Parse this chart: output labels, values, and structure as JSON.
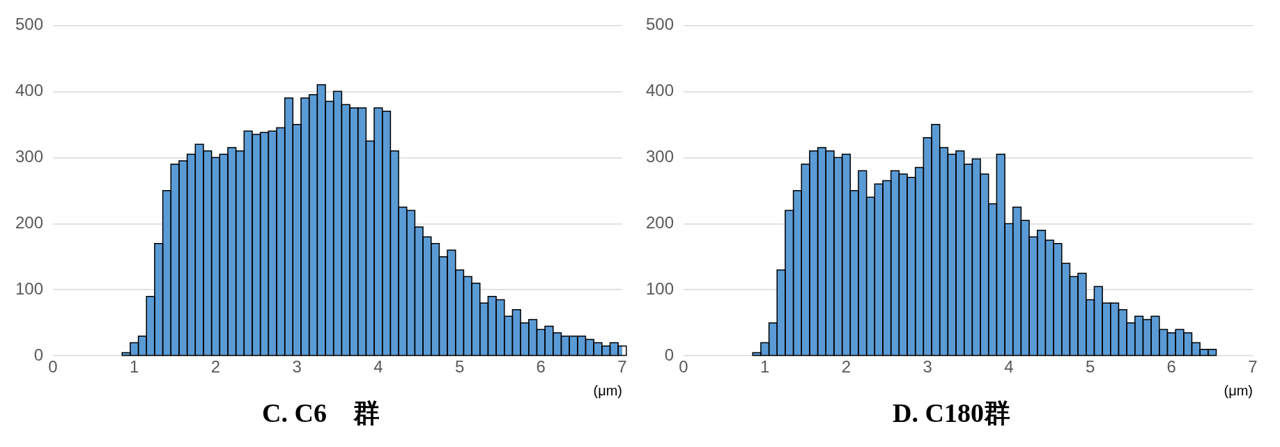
{
  "chart_data": [
    {
      "type": "histogram",
      "title": "C. C6　群",
      "xlabel": "(μm)",
      "color": "#5b9bd5",
      "bins": [
        0.85,
        0.95,
        1.05,
        1.15,
        1.25,
        1.35,
        1.45,
        1.55,
        1.65,
        1.75,
        1.85,
        1.95,
        2.05,
        2.15,
        2.25,
        2.35,
        2.45,
        2.55,
        2.65,
        2.75,
        2.85,
        2.95,
        3.05,
        3.15,
        3.25,
        3.35,
        3.45,
        3.55,
        3.65,
        3.75,
        3.85,
        3.95,
        4.05,
        4.15,
        4.25,
        4.35,
        4.45,
        4.55,
        4.65,
        4.75,
        4.85,
        4.95,
        5.05,
        5.15,
        5.25,
        5.35,
        5.45,
        5.55,
        5.65,
        5.75,
        5.85,
        5.95,
        6.05,
        6.15,
        6.25,
        6.35,
        6.45,
        6.55,
        6.65,
        6.75,
        6.85,
        6.95,
        7.05
      ],
      "values": [
        5,
        20,
        30,
        90,
        170,
        250,
        290,
        295,
        305,
        320,
        310,
        300,
        305,
        315,
        310,
        340,
        335,
        338,
        340,
        345,
        390,
        350,
        390,
        395,
        410,
        385,
        400,
        380,
        375,
        375,
        325,
        375,
        370,
        310,
        225,
        220,
        195,
        180,
        170,
        150,
        160,
        130,
        120,
        110,
        80,
        90,
        85,
        60,
        70,
        50,
        55,
        40,
        45,
        35,
        30,
        30,
        30,
        25,
        20,
        15,
        20,
        15
      ],
      "xlim": [
        0,
        7
      ],
      "xticks": [
        0,
        1,
        2,
        3,
        4,
        5,
        6,
        7
      ],
      "ylim": [
        0,
        500
      ],
      "yticks": [
        0,
        100,
        200,
        300,
        400,
        500
      ],
      "grid": "y"
    },
    {
      "type": "histogram",
      "title": "D. C180群",
      "xlabel": "(μm)",
      "color": "#5b9bd5",
      "bins": [
        0.85,
        0.95,
        1.05,
        1.15,
        1.25,
        1.35,
        1.45,
        1.55,
        1.65,
        1.75,
        1.85,
        1.95,
        2.05,
        2.15,
        2.25,
        2.35,
        2.45,
        2.55,
        2.65,
        2.75,
        2.85,
        2.95,
        3.05,
        3.15,
        3.25,
        3.35,
        3.45,
        3.55,
        3.65,
        3.75,
        3.85,
        3.95,
        4.05,
        4.15,
        4.25,
        4.35,
        4.45,
        4.55,
        4.65,
        4.75,
        4.85,
        4.95,
        5.05,
        5.15,
        5.25,
        5.35,
        5.45,
        5.55,
        5.65,
        5.75,
        5.85,
        5.95,
        6.05,
        6.15,
        6.25,
        6.35,
        6.45,
        6.55
      ],
      "values": [
        5,
        20,
        50,
        130,
        220,
        250,
        290,
        310,
        315,
        310,
        300,
        305,
        250,
        280,
        240,
        260,
        265,
        280,
        275,
        270,
        285,
        330,
        350,
        315,
        305,
        310,
        290,
        298,
        275,
        230,
        305,
        200,
        225,
        205,
        180,
        190,
        175,
        170,
        140,
        120,
        125,
        85,
        105,
        80,
        80,
        70,
        50,
        60,
        55,
        60,
        40,
        35,
        40,
        35,
        20,
        10,
        10
      ],
      "xlim": [
        0,
        7
      ],
      "xticks": [
        0,
        1,
        2,
        3,
        4,
        5,
        6,
        7
      ],
      "ylim": [
        0,
        500
      ],
      "yticks": [
        0,
        100,
        200,
        300,
        400,
        500
      ],
      "grid": "y"
    }
  ]
}
